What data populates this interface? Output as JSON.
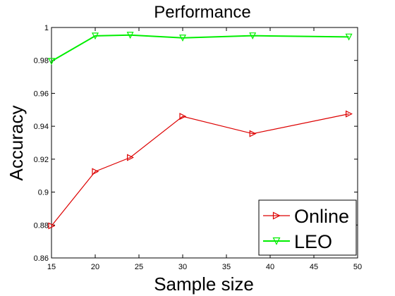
{
  "chart_data": {
    "type": "line",
    "title": "Performance",
    "xlabel": "Sample size",
    "ylabel": "Accuracy",
    "xlim": [
      15,
      50
    ],
    "ylim": [
      0.86,
      1.0
    ],
    "xticks": [
      "15",
      "20",
      "25",
      "30",
      "35",
      "40",
      "45",
      "50"
    ],
    "yticks": [
      "0.86",
      "0.88",
      "0.9",
      "0.92",
      "0.94",
      "0.96",
      "0.98",
      "1"
    ],
    "grid": false,
    "legend_position": "bottom-right",
    "series": [
      {
        "name": "Online",
        "color": "#dd0000",
        "marker": "triangle-right",
        "x": [
          15,
          20,
          24,
          30,
          38,
          49
        ],
        "y": [
          0.8795,
          0.9125,
          0.921,
          0.946,
          0.9355,
          0.9475
        ]
      },
      {
        "name": "LEO",
        "color": "#00ee00",
        "marker": "triangle-down",
        "x": [
          15,
          20,
          24,
          30,
          38,
          49
        ],
        "y": [
          0.9795,
          0.9949,
          0.9954,
          0.9937,
          0.995,
          0.9943
        ]
      }
    ]
  }
}
